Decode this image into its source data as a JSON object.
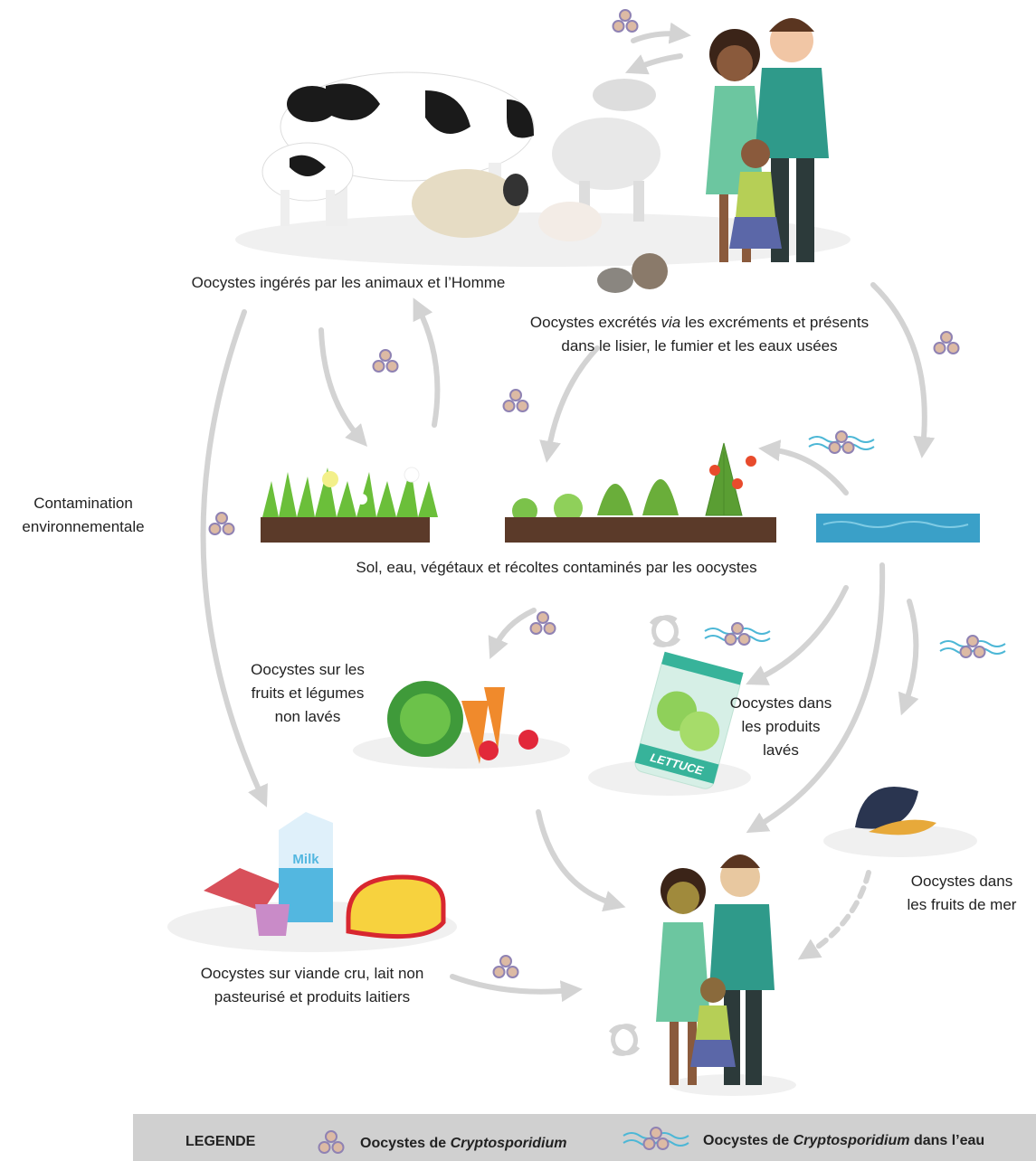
{
  "labels": {
    "ingestion": [
      [
        "Oocystes ingérés par les animaux et l’Homme"
      ]
    ],
    "excretion": [
      [
        "Oocystes excrétés ",
        {
          "text": "via",
          "italic": true
        },
        " les excréments et présents"
      ],
      [
        "dans le lisier, le fumier et les eaux usées"
      ]
    ],
    "environment": [
      [
        "Contamination"
      ],
      [
        "environnementale"
      ]
    ],
    "soil": [
      [
        "Sol, eau, végétaux et récoltes contaminés par les oocystes"
      ]
    ],
    "unwashed": [
      [
        "Oocystes sur les"
      ],
      [
        "fruits et légumes"
      ],
      [
        "non lavés"
      ]
    ],
    "washed": [
      [
        "Oocystes dans"
      ],
      [
        "les produits"
      ],
      [
        "lavés"
      ]
    ],
    "seafood": [
      [
        "Oocystes dans"
      ],
      [
        "les fruits de mer"
      ]
    ],
    "dairy": [
      [
        "Oocystes sur viande cru, lait non"
      ],
      [
        "pasteurisé et produits laitiers"
      ]
    ]
  },
  "illustration_text": {
    "milk": "Milk",
    "lettuce": "LETTUCE"
  },
  "legend": {
    "title": "LEGENDE",
    "oocyst": [
      "Oocystes de ",
      {
        "text": "Cryptosporidium",
        "italic": true
      }
    ],
    "water": [
      "Oocystes de ",
      {
        "text": "Cryptosporidium",
        "italic": true
      },
      " dans l’eau"
    ]
  }
}
